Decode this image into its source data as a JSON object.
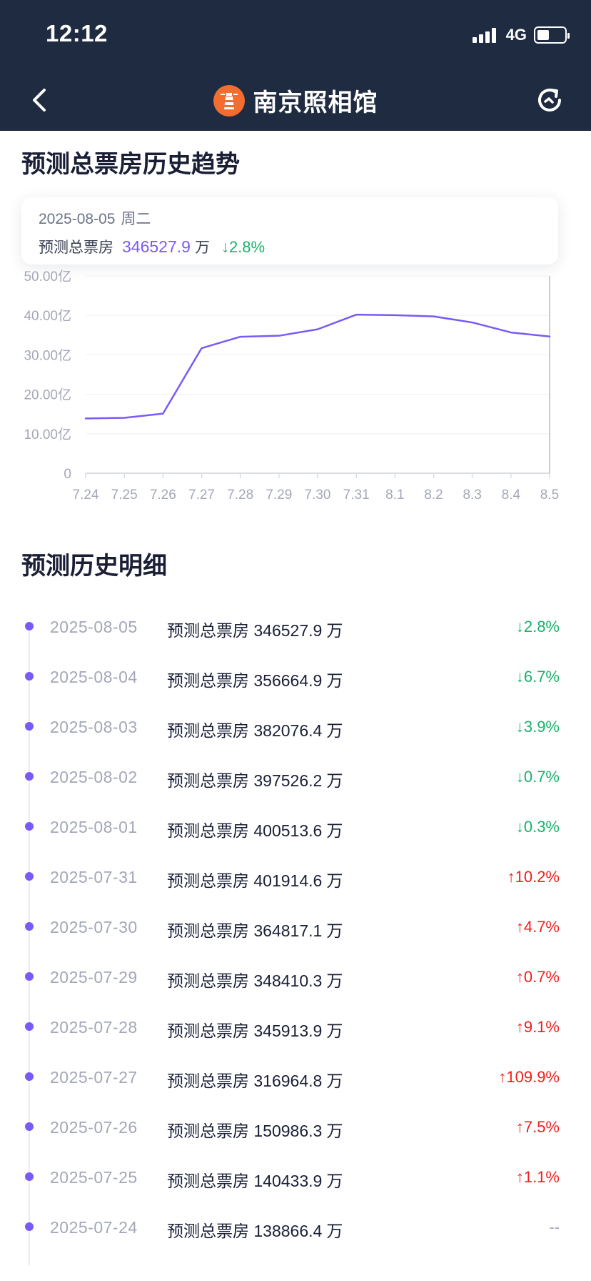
{
  "status_bar": {
    "time": "12:12",
    "network": "4G",
    "battery_level": 0.45
  },
  "nav": {
    "title": "南京照相馆",
    "back_icon": "chevron-left-icon",
    "refresh_icon": "refresh-icon",
    "logo_icon": "lighthouse-logo-icon"
  },
  "trend": {
    "section_title": "预测总票房历史趋势",
    "tooltip": {
      "date": "2025-08-05",
      "weekday": "周二",
      "label": "预测总票房",
      "value": "346527.9",
      "unit": "万",
      "change": "2.8%",
      "direction": "down"
    }
  },
  "chart_data": {
    "type": "line",
    "title": "",
    "categories": [
      "7.24",
      "7.25",
      "7.26",
      "7.27",
      "7.28",
      "7.29",
      "7.30",
      "7.31",
      "8.1",
      "8.2",
      "8.3",
      "8.4",
      "8.5"
    ],
    "series": [
      {
        "values": [
          13.89,
          14.04,
          15.1,
          31.7,
          34.59,
          34.84,
          36.48,
          40.19,
          40.05,
          39.75,
          38.21,
          35.67,
          34.65
        ]
      }
    ],
    "y_ticks": [
      "50.00亿",
      "40.00亿",
      "30.00亿",
      "20.00亿",
      "10.00亿",
      "0"
    ],
    "ylim": [
      0,
      50
    ],
    "grid": true,
    "line_color": "#7a5af5"
  },
  "history": {
    "section_title": "预测历史明细",
    "unit": "万",
    "label": "预测总票房",
    "rows": [
      {
        "date": "2025-08-05",
        "value": "346527.9",
        "change": "2.8%",
        "direction": "down"
      },
      {
        "date": "2025-08-04",
        "value": "356664.9",
        "change": "6.7%",
        "direction": "down"
      },
      {
        "date": "2025-08-03",
        "value": "382076.4",
        "change": "3.9%",
        "direction": "down"
      },
      {
        "date": "2025-08-02",
        "value": "397526.2",
        "change": "0.7%",
        "direction": "down"
      },
      {
        "date": "2025-08-01",
        "value": "400513.6",
        "change": "0.3%",
        "direction": "down"
      },
      {
        "date": "2025-07-31",
        "value": "401914.6",
        "change": "10.2%",
        "direction": "up"
      },
      {
        "date": "2025-07-30",
        "value": "364817.1",
        "change": "4.7%",
        "direction": "up"
      },
      {
        "date": "2025-07-29",
        "value": "348410.3",
        "change": "0.7%",
        "direction": "up"
      },
      {
        "date": "2025-07-28",
        "value": "345913.9",
        "change": "9.1%",
        "direction": "up"
      },
      {
        "date": "2025-07-27",
        "value": "316964.8",
        "change": "109.9%",
        "direction": "up"
      },
      {
        "date": "2025-07-26",
        "value": "150986.3",
        "change": "7.5%",
        "direction": "up"
      },
      {
        "date": "2025-07-25",
        "value": "140433.9",
        "change": "1.1%",
        "direction": "up"
      },
      {
        "date": "2025-07-24",
        "value": "138866.4",
        "change": "--",
        "direction": "none"
      }
    ]
  },
  "colors": {
    "header_bg": "#1e2b40",
    "accent": "#7a5af5",
    "down": "#17b26a",
    "up": "#f11d1d"
  }
}
